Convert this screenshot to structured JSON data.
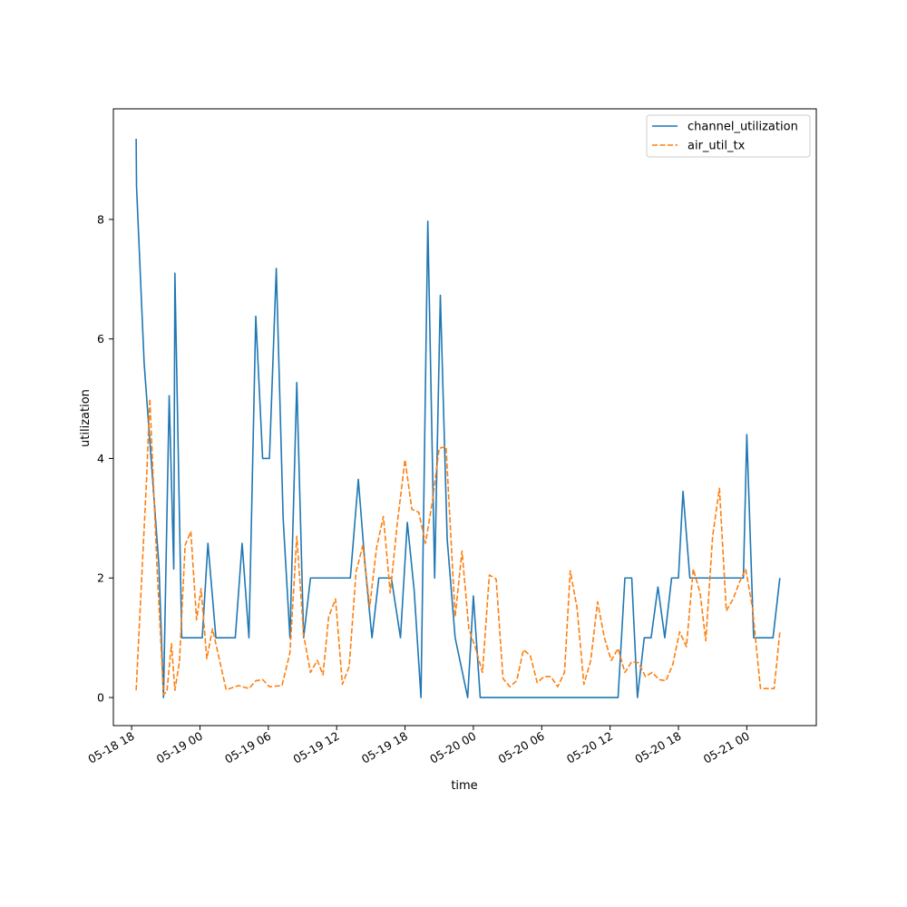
{
  "chart_data": {
    "type": "line",
    "title": "",
    "xlabel": "time",
    "ylabel": "utilization",
    "x_tick_labels": [
      "05-18 18",
      "05-19 00",
      "05-19 06",
      "05-19 12",
      "05-19 18",
      "05-20 00",
      "05-20 06",
      "05-20 12",
      "05-20 18",
      "05-21 00"
    ],
    "x_ticks": [
      "2024-05-18T18:00",
      "2024-05-19T00:00",
      "2024-05-19T06:00",
      "2024-05-19T12:00",
      "2024-05-19T18:00",
      "2024-05-20T00:00",
      "2024-05-20T06:00",
      "2024-05-20T12:00",
      "2024-05-20T18:00",
      "2024-05-21T00:00"
    ],
    "xlim": [
      "2024-05-18T16:24",
      "2024-05-21T06:06"
    ],
    "y_ticks": [
      0,
      2,
      4,
      6,
      8
    ],
    "ylim": [
      -0.47,
      9.85
    ],
    "grid": false,
    "legend_position": "top-right",
    "series": [
      {
        "name": "channel_utilization",
        "color": "#1f77b4",
        "style": "solid",
        "points": [
          [
            "2024-05-18T18:24",
            9.35
          ],
          [
            "2024-05-18T18:26",
            8.55
          ],
          [
            "2024-05-18T19:06",
            5.6
          ],
          [
            "2024-05-18T20:24",
            2.2
          ],
          [
            "2024-05-18T20:48",
            0.0
          ],
          [
            "2024-05-18T21:18",
            5.05
          ],
          [
            "2024-05-18T21:42",
            2.15
          ],
          [
            "2024-05-18T21:48",
            7.1
          ],
          [
            "2024-05-18T22:24",
            1.0
          ],
          [
            "2024-05-19T00:12",
            1.0
          ],
          [
            "2024-05-19T00:42",
            2.58
          ],
          [
            "2024-05-19T01:24",
            1.0
          ],
          [
            "2024-05-19T03:06",
            1.0
          ],
          [
            "2024-05-19T03:42",
            2.58
          ],
          [
            "2024-05-19T04:18",
            1.0
          ],
          [
            "2024-05-19T04:54",
            6.38
          ],
          [
            "2024-05-19T05:30",
            4.0
          ],
          [
            "2024-05-19T06:06",
            4.0
          ],
          [
            "2024-05-19T06:42",
            7.18
          ],
          [
            "2024-05-19T07:18",
            3.0
          ],
          [
            "2024-05-19T07:54",
            1.0
          ],
          [
            "2024-05-19T08:30",
            5.27
          ],
          [
            "2024-05-19T09:06",
            1.0
          ],
          [
            "2024-05-19T09:42",
            2.0
          ],
          [
            "2024-05-19T13:12",
            2.0
          ],
          [
            "2024-05-19T13:54",
            3.65
          ],
          [
            "2024-05-19T14:30",
            2.2
          ],
          [
            "2024-05-19T15:06",
            1.0
          ],
          [
            "2024-05-19T15:42",
            2.0
          ],
          [
            "2024-05-19T16:48",
            2.0
          ],
          [
            "2024-05-19T17:36",
            1.0
          ],
          [
            "2024-05-19T18:12",
            2.93
          ],
          [
            "2024-05-19T18:48",
            1.8
          ],
          [
            "2024-05-19T19:24",
            0.0
          ],
          [
            "2024-05-19T20:00",
            7.97
          ],
          [
            "2024-05-19T20:36",
            2.0
          ],
          [
            "2024-05-19T21:06",
            6.73
          ],
          [
            "2024-05-19T21:42",
            2.65
          ],
          [
            "2024-05-19T22:24",
            1.0
          ],
          [
            "2024-05-19T23:30",
            0.0
          ],
          [
            "2024-05-20T00:00",
            1.7
          ],
          [
            "2024-05-20T00:36",
            0.0
          ],
          [
            "2024-05-20T12:42",
            0.0
          ],
          [
            "2024-05-20T13:18",
            2.0
          ],
          [
            "2024-05-20T13:54",
            2.0
          ],
          [
            "2024-05-20T14:24",
            0.0
          ],
          [
            "2024-05-20T15:00",
            1.0
          ],
          [
            "2024-05-20T15:36",
            1.0
          ],
          [
            "2024-05-20T16:12",
            1.85
          ],
          [
            "2024-05-20T16:48",
            1.0
          ],
          [
            "2024-05-20T17:24",
            2.0
          ],
          [
            "2024-05-20T18:00",
            2.0
          ],
          [
            "2024-05-20T18:24",
            3.45
          ],
          [
            "2024-05-20T19:00",
            2.0
          ],
          [
            "2024-05-20T23:42",
            2.0
          ],
          [
            "2024-05-21T00:00",
            4.4
          ],
          [
            "2024-05-21T00:36",
            1.0
          ],
          [
            "2024-05-21T01:48",
            1.0
          ],
          [
            "2024-05-21T02:18",
            1.0
          ],
          [
            "2024-05-21T02:54",
            2.0
          ]
        ]
      },
      {
        "name": "air_util_tx",
        "color": "#ff7f0e",
        "style": "dashed",
        "points": [
          [
            "2024-05-18T18:24",
            0.12
          ],
          [
            "2024-05-18T19:18",
            3.6
          ],
          [
            "2024-05-18T19:36",
            5.0
          ],
          [
            "2024-05-18T20:12",
            2.3
          ],
          [
            "2024-05-18T20:48",
            0.05
          ],
          [
            "2024-05-18T21:06",
            0.1
          ],
          [
            "2024-05-18T21:30",
            0.9
          ],
          [
            "2024-05-18T21:48",
            0.12
          ],
          [
            "2024-05-18T22:12",
            0.6
          ],
          [
            "2024-05-18T22:42",
            2.55
          ],
          [
            "2024-05-18T23:12",
            2.78
          ],
          [
            "2024-05-18T23:42",
            1.3
          ],
          [
            "2024-05-19T00:06",
            1.82
          ],
          [
            "2024-05-19T00:36",
            0.65
          ],
          [
            "2024-05-19T01:06",
            1.15
          ],
          [
            "2024-05-19T02:18",
            0.13
          ],
          [
            "2024-05-19T03:24",
            0.2
          ],
          [
            "2024-05-19T04:18",
            0.15
          ],
          [
            "2024-05-19T04:54",
            0.28
          ],
          [
            "2024-05-19T05:30",
            0.3
          ],
          [
            "2024-05-19T06:06",
            0.18
          ],
          [
            "2024-05-19T07:12",
            0.2
          ],
          [
            "2024-05-19T07:54",
            0.75
          ],
          [
            "2024-05-19T08:30",
            2.7
          ],
          [
            "2024-05-19T09:06",
            1.05
          ],
          [
            "2024-05-19T09:42",
            0.42
          ],
          [
            "2024-05-19T10:18",
            0.62
          ],
          [
            "2024-05-19T10:48",
            0.38
          ],
          [
            "2024-05-19T11:18",
            1.35
          ],
          [
            "2024-05-19T11:54",
            1.65
          ],
          [
            "2024-05-19T12:30",
            0.22
          ],
          [
            "2024-05-19T13:06",
            0.52
          ],
          [
            "2024-05-19T13:42",
            2.1
          ],
          [
            "2024-05-19T14:18",
            2.55
          ],
          [
            "2024-05-19T14:54",
            1.52
          ],
          [
            "2024-05-19T15:30",
            2.5
          ],
          [
            "2024-05-19T16:06",
            3.03
          ],
          [
            "2024-05-19T16:42",
            1.75
          ],
          [
            "2024-05-19T17:18",
            2.88
          ],
          [
            "2024-05-19T18:00",
            3.98
          ],
          [
            "2024-05-19T18:36",
            3.15
          ],
          [
            "2024-05-19T19:12",
            3.1
          ],
          [
            "2024-05-19T19:48",
            2.58
          ],
          [
            "2024-05-19T20:24",
            3.28
          ],
          [
            "2024-05-19T21:00",
            4.17
          ],
          [
            "2024-05-19T21:36",
            4.2
          ],
          [
            "2024-05-19T22:24",
            1.35
          ],
          [
            "2024-05-19T23:00",
            2.45
          ],
          [
            "2024-05-19T23:36",
            1.15
          ],
          [
            "2024-05-20T00:12",
            0.82
          ],
          [
            "2024-05-20T00:48",
            0.42
          ],
          [
            "2024-05-20T01:24",
            2.05
          ],
          [
            "2024-05-20T02:00",
            1.98
          ],
          [
            "2024-05-20T02:36",
            0.32
          ],
          [
            "2024-05-20T03:12",
            0.18
          ],
          [
            "2024-05-20T03:48",
            0.28
          ],
          [
            "2024-05-20T04:24",
            0.8
          ],
          [
            "2024-05-20T05:00",
            0.7
          ],
          [
            "2024-05-20T05:36",
            0.25
          ],
          [
            "2024-05-20T06:12",
            0.35
          ],
          [
            "2024-05-20T06:48",
            0.35
          ],
          [
            "2024-05-20T07:24",
            0.18
          ],
          [
            "2024-05-20T08:00",
            0.42
          ],
          [
            "2024-05-20T08:30",
            2.12
          ],
          [
            "2024-05-20T09:06",
            1.5
          ],
          [
            "2024-05-20T09:42",
            0.22
          ],
          [
            "2024-05-20T10:18",
            0.62
          ],
          [
            "2024-05-20T10:54",
            1.6
          ],
          [
            "2024-05-20T11:30",
            1.0
          ],
          [
            "2024-05-20T12:06",
            0.62
          ],
          [
            "2024-05-20T12:42",
            0.82
          ],
          [
            "2024-05-20T13:18",
            0.42
          ],
          [
            "2024-05-20T13:54",
            0.6
          ],
          [
            "2024-05-20T14:30",
            0.58
          ],
          [
            "2024-05-20T15:06",
            0.35
          ],
          [
            "2024-05-20T15:42",
            0.42
          ],
          [
            "2024-05-20T16:18",
            0.3
          ],
          [
            "2024-05-20T16:54",
            0.28
          ],
          [
            "2024-05-20T17:30",
            0.55
          ],
          [
            "2024-05-20T18:06",
            1.1
          ],
          [
            "2024-05-20T18:42",
            0.85
          ],
          [
            "2024-05-20T19:18",
            2.15
          ],
          [
            "2024-05-20T19:54",
            1.75
          ],
          [
            "2024-05-20T20:24",
            0.95
          ],
          [
            "2024-05-20T21:00",
            2.7
          ],
          [
            "2024-05-20T21:36",
            3.5
          ],
          [
            "2024-05-20T22:12",
            1.45
          ],
          [
            "2024-05-20T22:48",
            1.65
          ],
          [
            "2024-05-20T23:24",
            1.95
          ],
          [
            "2024-05-20T23:54",
            2.15
          ],
          [
            "2024-05-21T00:30",
            1.5
          ],
          [
            "2024-05-21T01:12",
            0.15
          ],
          [
            "2024-05-21T01:48",
            0.15
          ],
          [
            "2024-05-21T02:24",
            0.15
          ],
          [
            "2024-05-21T02:54",
            1.1
          ]
        ]
      }
    ]
  }
}
